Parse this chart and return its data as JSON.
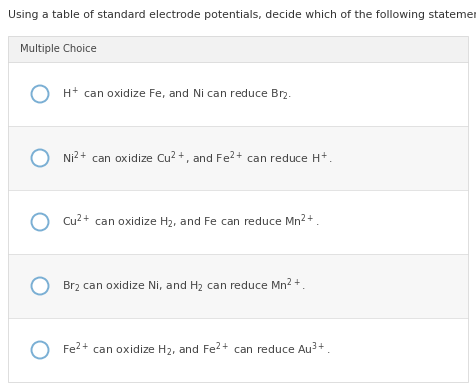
{
  "title": "Using a table of standard electrode potentials, decide which of the following statements is completely true.",
  "section_label": "Multiple Choice",
  "bg_color": "#ffffff",
  "section_bg": "#f2f2f2",
  "option_bg_even": "#ffffff",
  "option_bg_odd": "#f7f7f7",
  "divider_color": "#d8d8d8",
  "text_color": "#444444",
  "title_color": "#333333",
  "circle_edge_color": "#7aafd4",
  "circle_fill_color": "#ffffff",
  "options": [
    "H$^+$ can oxidize Fe, and Ni can reduce Br$_2$.",
    "Ni$^{2+}$ can oxidize Cu$^{2+}$, and Fe$^{2+}$ can reduce H$^+$.",
    "Cu$^{2+}$ can oxidize H$_2$, and Fe can reduce Mn$^{2+}$.",
    "Br$_2$ can oxidize Ni, and H$_2$ can reduce Mn$^{2+}$.",
    "Fe$^{2+}$ can oxidize H$_2$, and Fe$^{2+}$ can reduce Au$^{3+}$."
  ],
  "title_fontsize": 7.8,
  "section_fontsize": 7.2,
  "option_fontsize": 7.8,
  "figwidth": 4.76,
  "figheight": 3.84,
  "dpi": 100
}
